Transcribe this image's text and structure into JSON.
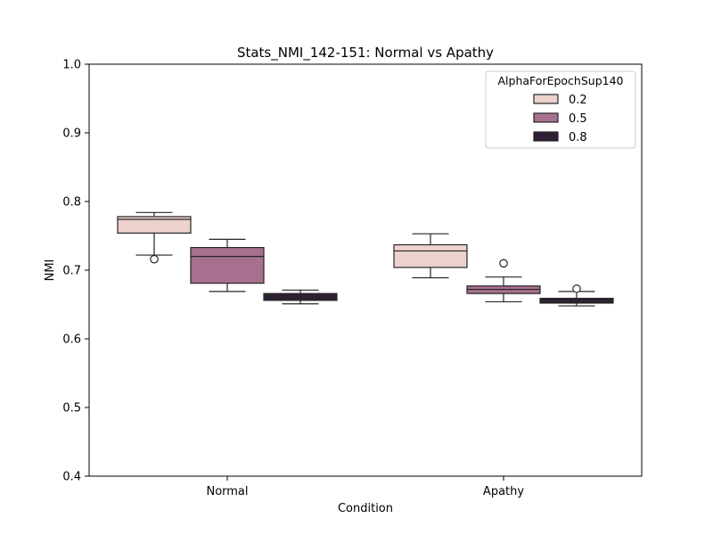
{
  "chart_data": {
    "type": "box",
    "title": "Stats_NMI_142-151: Normal vs Apathy",
    "xlabel": "Condition",
    "ylabel": "NMI",
    "ylim": [
      0.4,
      1.0
    ],
    "yticks": [
      "0.4",
      "0.5",
      "0.6",
      "0.7",
      "0.8",
      "0.9",
      "1.0"
    ],
    "categories": [
      "Normal",
      "Apathy"
    ],
    "legend": {
      "title": "AlphaForEpochSup140",
      "placement": "top-right"
    },
    "series": [
      {
        "name": "0.2",
        "color": "#ecd2cb",
        "boxes": [
          {
            "whisker_low": 0.722,
            "q1": 0.754,
            "median": 0.774,
            "q3": 0.778,
            "whisker_high": 0.784,
            "outliers": [
              0.716
            ]
          },
          {
            "whisker_low": 0.689,
            "q1": 0.704,
            "median": 0.728,
            "q3": 0.737,
            "whisker_high": 0.753,
            "outliers": []
          }
        ]
      },
      {
        "name": "0.5",
        "color": "#a7708f",
        "boxes": [
          {
            "whisker_low": 0.669,
            "q1": 0.681,
            "median": 0.72,
            "q3": 0.733,
            "whisker_high": 0.745,
            "outliers": []
          },
          {
            "whisker_low": 0.654,
            "q1": 0.666,
            "median": 0.672,
            "q3": 0.677,
            "whisker_high": 0.69,
            "outliers": [
              0.71
            ]
          }
        ]
      },
      {
        "name": "0.8",
        "color": "#2e1f37",
        "boxes": [
          {
            "whisker_low": 0.651,
            "q1": 0.656,
            "median": 0.662,
            "q3": 0.666,
            "whisker_high": 0.671,
            "outliers": []
          },
          {
            "whisker_low": 0.648,
            "q1": 0.652,
            "median": 0.655,
            "q3": 0.659,
            "whisker_high": 0.669,
            "outliers": [
              0.673
            ]
          }
        ]
      }
    ]
  }
}
